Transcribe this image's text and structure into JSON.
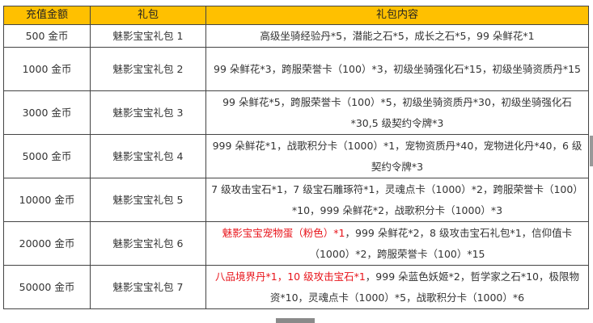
{
  "table": {
    "headers": [
      "充值金额",
      "礼包",
      "礼包内容"
    ],
    "rows": [
      {
        "amount": "500 金币",
        "pack": "魅影宝宝礼包 1",
        "content": [
          {
            "text": "高级坐骑经验丹*5，潜能之石*5，成长之石*5，99 朵鲜花*1",
            "red": false
          }
        ]
      },
      {
        "amount": "1000 金币",
        "pack": "魅影宝宝礼包 2",
        "content": [
          {
            "text": "99 朵鲜花*3，跨服荣誉卡（100）*3，初级坐骑强化石*15，初级坐骑资质丹*15",
            "red": false
          }
        ]
      },
      {
        "amount": "3000 金币",
        "pack": "魅影宝宝礼包 3",
        "content": [
          {
            "text": "99 朵鲜花*5，跨服荣誉卡（100）*5，初级坐骑资质丹*30，初级坐骑强化石*30,5 级契约令牌*3",
            "red": false
          }
        ]
      },
      {
        "amount": "5000 金币",
        "pack": "魅影宝宝礼包 4",
        "content": [
          {
            "text": "999 朵鲜花*1，战歌积分卡（1000）*1，宠物资质丹*40，宠物进化丹*40，6 级契约令牌*3",
            "red": false
          }
        ]
      },
      {
        "amount": "10000 金币",
        "pack": "魅影宝宝礼包 5",
        "content": [
          {
            "text": "7 级攻击宝石*1，7 级宝石雕琢符*1，灵魂点卡（1000）*2，跨服荣誉卡（100）*10，999 朵鲜花*2，战歌积分卡（1000）*3",
            "red": false
          }
        ]
      },
      {
        "amount": "20000 金币",
        "pack": "魅影宝宝礼包 6",
        "content": [
          {
            "text": "魅影宝宝宠物蛋（粉色）*1",
            "red": true
          },
          {
            "text": "，999 朵鲜花*2，8 级攻击宝石礼包*1，信仰值卡（1000）*2，跨服荣誉卡（100）*15",
            "red": false
          }
        ]
      },
      {
        "amount": "50000 金币",
        "pack": "魅影宝宝礼包 7",
        "content": [
          {
            "text": "八品境界丹*1，10 级攻击宝石*1",
            "red": true
          },
          {
            "text": "，999 朵蓝色妖姬*2，哲学家之石*10，极限物资*10，灵魂点卡（1000）*5，战歌积分卡（1000）*6",
            "red": false
          }
        ]
      }
    ]
  },
  "colors": {
    "header_bg": "#ffc000",
    "highlight": "#e8141b"
  }
}
